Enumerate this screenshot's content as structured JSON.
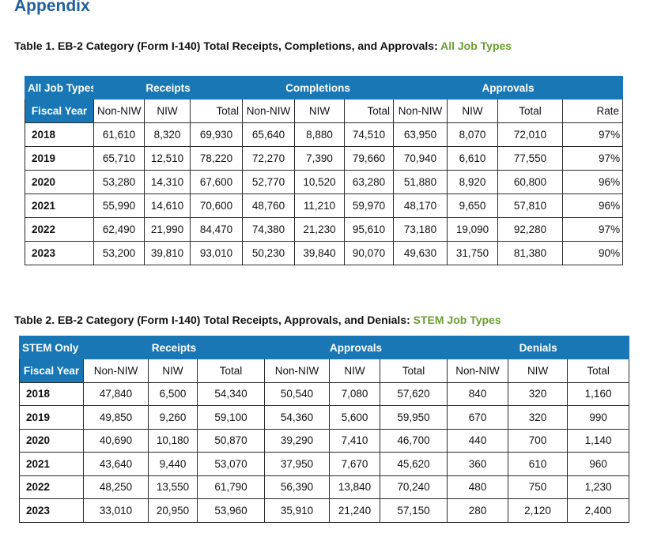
{
  "heading": "Appendix",
  "table1": {
    "caption_prefix": "Table 1. EB-2 Category (Form I-140) Total Receipts, Completions, and Approvals: ",
    "caption_highlight": "All Job Types",
    "corner_top": "All Job Types",
    "corner_bottom": "Fiscal Year",
    "groups": [
      "Receipts",
      "Completions",
      "Approvals"
    ],
    "subheaders": [
      "Non-NIW",
      "NIW",
      "Total",
      "Non-NIW",
      "NIW",
      "Total",
      "Non-NIW",
      "NIW",
      "Total",
      "Rate"
    ],
    "rows": [
      {
        "year": "2018",
        "cells": [
          "61,610",
          "8,320",
          "69,930",
          "65,640",
          "8,880",
          "74,510",
          "63,950",
          "8,070",
          "72,010",
          "97%"
        ]
      },
      {
        "year": "2019",
        "cells": [
          "65,710",
          "12,510",
          "78,220",
          "72,270",
          "7,390",
          "79,660",
          "70,940",
          "6,610",
          "77,550",
          "97%"
        ]
      },
      {
        "year": "2020",
        "cells": [
          "53,280",
          "14,310",
          "67,600",
          "52,770",
          "10,520",
          "63,280",
          "51,880",
          "8,920",
          "60,800",
          "96%"
        ]
      },
      {
        "year": "2021",
        "cells": [
          "55,990",
          "14,610",
          "70,600",
          "48,760",
          "11,210",
          "59,970",
          "48,170",
          "9,650",
          "57,810",
          "96%"
        ]
      },
      {
        "year": "2022",
        "cells": [
          "62,490",
          "21,990",
          "84,470",
          "74,380",
          "21,230",
          "95,610",
          "73,180",
          "19,090",
          "92,280",
          "97%"
        ]
      },
      {
        "year": "2023",
        "cells": [
          "53,200",
          "39,810",
          "93,010",
          "50,230",
          "39,840",
          "90,070",
          "49,630",
          "31,750",
          "81,380",
          "90%"
        ]
      }
    ]
  },
  "table2": {
    "caption_prefix": "Table 2. EB-2 Category (Form I-140) Total Receipts, Approvals, and Denials: ",
    "caption_highlight": "STEM Job Types",
    "corner_top": "STEM Only",
    "corner_bottom": "Fiscal Year",
    "groups": [
      "Receipts",
      "Approvals",
      "Denials"
    ],
    "subheaders": [
      "Non-NIW",
      "NIW",
      "Total",
      "Non-NIW",
      "NIW",
      "Total",
      "Non-NIW",
      "NIW",
      "Total"
    ],
    "rows": [
      {
        "year": "2018",
        "cells": [
          "47,840",
          "6,500",
          "54,340",
          "50,540",
          "7,080",
          "57,620",
          "840",
          "320",
          "1,160"
        ]
      },
      {
        "year": "2019",
        "cells": [
          "49,850",
          "9,260",
          "59,100",
          "54,360",
          "5,600",
          "59,950",
          "670",
          "320",
          "990"
        ]
      },
      {
        "year": "2020",
        "cells": [
          "40,690",
          "10,180",
          "50,870",
          "39,290",
          "7,410",
          "46,700",
          "440",
          "700",
          "1,140"
        ]
      },
      {
        "year": "2021",
        "cells": [
          "43,640",
          "9,440",
          "53,070",
          "37,950",
          "7,670",
          "45,620",
          "360",
          "610",
          "960"
        ]
      },
      {
        "year": "2022",
        "cells": [
          "48,250",
          "13,550",
          "61,790",
          "56,390",
          "13,840",
          "70,240",
          "480",
          "750",
          "1,230"
        ]
      },
      {
        "year": "2023",
        "cells": [
          "33,010",
          "20,950",
          "53,960",
          "35,910",
          "21,240",
          "57,150",
          "280",
          "2,120",
          "2,400"
        ]
      }
    ]
  },
  "colors": {
    "heading": "#1f5f9f",
    "header_fill": "#1977b5",
    "caption_highlight": "#6a9e2e"
  }
}
